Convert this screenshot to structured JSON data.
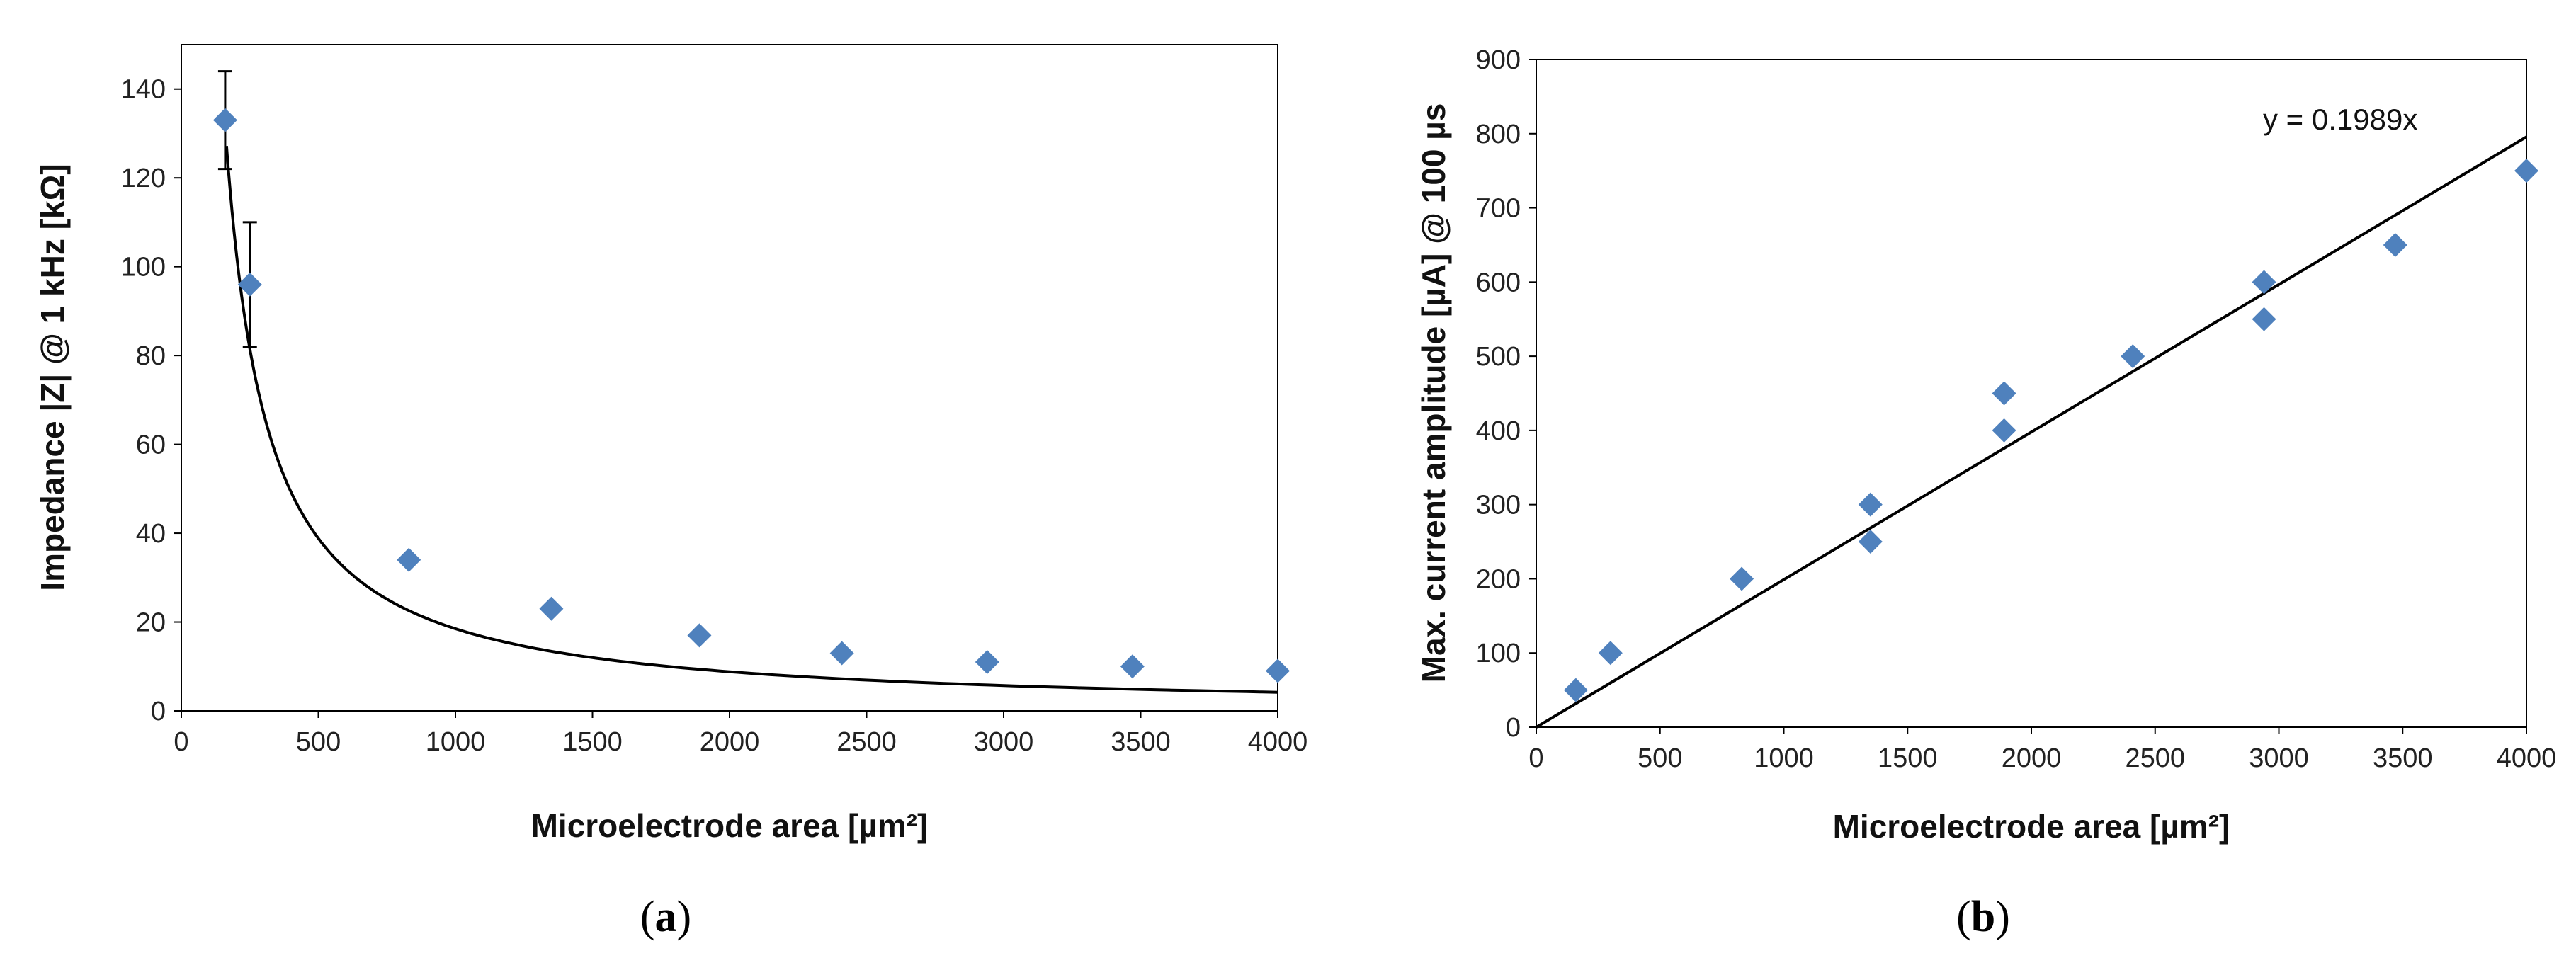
{
  "chart_data": [
    {
      "panel": "(a)",
      "panel_letter": "a",
      "type": "scatter",
      "title": "",
      "xlabel": "Microelectrode area [µm²]",
      "ylabel": "Impedance  |Z|  @ 1 kHz [kΩ]",
      "xlim": [
        0,
        4000
      ],
      "ylim": [
        0,
        150
      ],
      "xticks": [
        0,
        500,
        1000,
        1500,
        2000,
        2500,
        3000,
        3500,
        4000
      ],
      "yticks": [
        0,
        20,
        40,
        60,
        80,
        100,
        120,
        140
      ],
      "grid": false,
      "marker_color": "#4F81BD",
      "line_color": "#000000",
      "points": [
        {
          "x": 160,
          "y": 133,
          "err": 11
        },
        {
          "x": 250,
          "y": 96,
          "err": 14
        },
        {
          "x": 830,
          "y": 34
        },
        {
          "x": 1350,
          "y": 23
        },
        {
          "x": 1890,
          "y": 17
        },
        {
          "x": 2410,
          "y": 13
        },
        {
          "x": 2940,
          "y": 11
        },
        {
          "x": 3470,
          "y": 10
        },
        {
          "x": 4000,
          "y": 9
        }
      ],
      "fit": {
        "type": "power",
        "a": 30000,
        "b": -1.07,
        "x_start": 165,
        "x_end": 4000
      }
    },
    {
      "panel": "(b)",
      "panel_letter": "b",
      "type": "scatter",
      "title": "",
      "xlabel": "Microelectrode area [µm²]",
      "ylabel": "Max. current amplitude [µA] @ 100 µs",
      "xlim": [
        0,
        4000
      ],
      "ylim": [
        0,
        900
      ],
      "xticks": [
        0,
        500,
        1000,
        1500,
        2000,
        2500,
        3000,
        3500,
        4000
      ],
      "yticks": [
        0,
        100,
        200,
        300,
        400,
        500,
        600,
        700,
        800,
        900
      ],
      "grid": false,
      "marker_color": "#4F81BD",
      "line_color": "#000000",
      "points": [
        {
          "x": 160,
          "y": 50
        },
        {
          "x": 300,
          "y": 100
        },
        {
          "x": 830,
          "y": 200
        },
        {
          "x": 1350,
          "y": 300
        },
        {
          "x": 1350,
          "y": 250
        },
        {
          "x": 1890,
          "y": 450
        },
        {
          "x": 1890,
          "y": 400
        },
        {
          "x": 2410,
          "y": 500
        },
        {
          "x": 2940,
          "y": 600
        },
        {
          "x": 2940,
          "y": 550
        },
        {
          "x": 3470,
          "y": 650
        },
        {
          "x": 4000,
          "y": 750
        }
      ],
      "fit": {
        "type": "linear",
        "slope": 0.1989,
        "x_start": 0,
        "x_end": 4000
      },
      "annotation": "y = 0.1989x"
    }
  ]
}
